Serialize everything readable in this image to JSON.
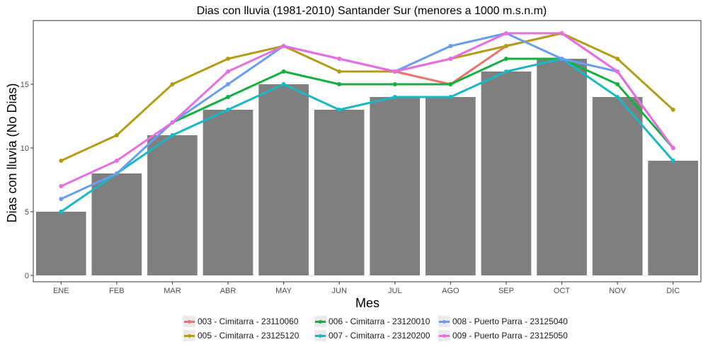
{
  "chart_data": {
    "type": "bar",
    "title": "Dias con lluvia (1981-2010) Santander Sur (menores a 1000 m.s.n.m)",
    "xlabel": "Mes",
    "ylabel": "Dias con lluvia (No Dias)",
    "categories": [
      "ENE",
      "FEB",
      "MAR",
      "ABR",
      "MAY",
      "JUN",
      "JUL",
      "AGO",
      "SEP",
      "OCT",
      "NOV",
      "DIC"
    ],
    "ylim": [
      -0.5,
      20
    ],
    "yticks": [
      0,
      5,
      10,
      15
    ],
    "grid": false,
    "legend_position": "bottom",
    "bars": {
      "color": "#7f7f7f",
      "values": [
        5,
        8,
        11,
        13,
        15,
        13,
        14,
        14,
        16,
        17,
        14,
        9
      ]
    },
    "series": [
      {
        "name": "003 - Cimitarra - 23110060",
        "color": "#e7756b",
        "values": [
          null,
          null,
          null,
          null,
          null,
          null,
          16,
          15,
          18,
          19,
          16,
          10
        ]
      },
      {
        "name": "005 - Cimitarra - 23125120",
        "color": "#b39d16",
        "values": [
          9,
          11,
          15,
          17,
          18,
          16,
          16,
          17,
          18,
          19,
          17,
          13
        ]
      },
      {
        "name": "006 - Cimitarra - 23120010",
        "color": "#15b040",
        "values": [
          null,
          null,
          12,
          14,
          16,
          15,
          15,
          15,
          17,
          17,
          15,
          10
        ]
      },
      {
        "name": "007 - Cimitarra - 23120200",
        "color": "#19b8c3",
        "values": [
          5,
          8,
          11,
          13,
          15,
          13,
          14,
          14,
          16,
          17,
          14,
          9
        ]
      },
      {
        "name": "008 - Puerto Parra - 23125040",
        "color": "#6a9ded",
        "values": [
          6,
          8,
          12,
          15,
          18,
          17,
          16,
          18,
          19,
          17,
          16,
          10
        ]
      },
      {
        "name": "009 - Puerto Parra - 23125050",
        "color": "#e66ee0",
        "values": [
          7,
          9,
          12,
          16,
          18,
          17,
          16,
          17,
          19,
          19,
          16,
          10
        ]
      }
    ]
  }
}
